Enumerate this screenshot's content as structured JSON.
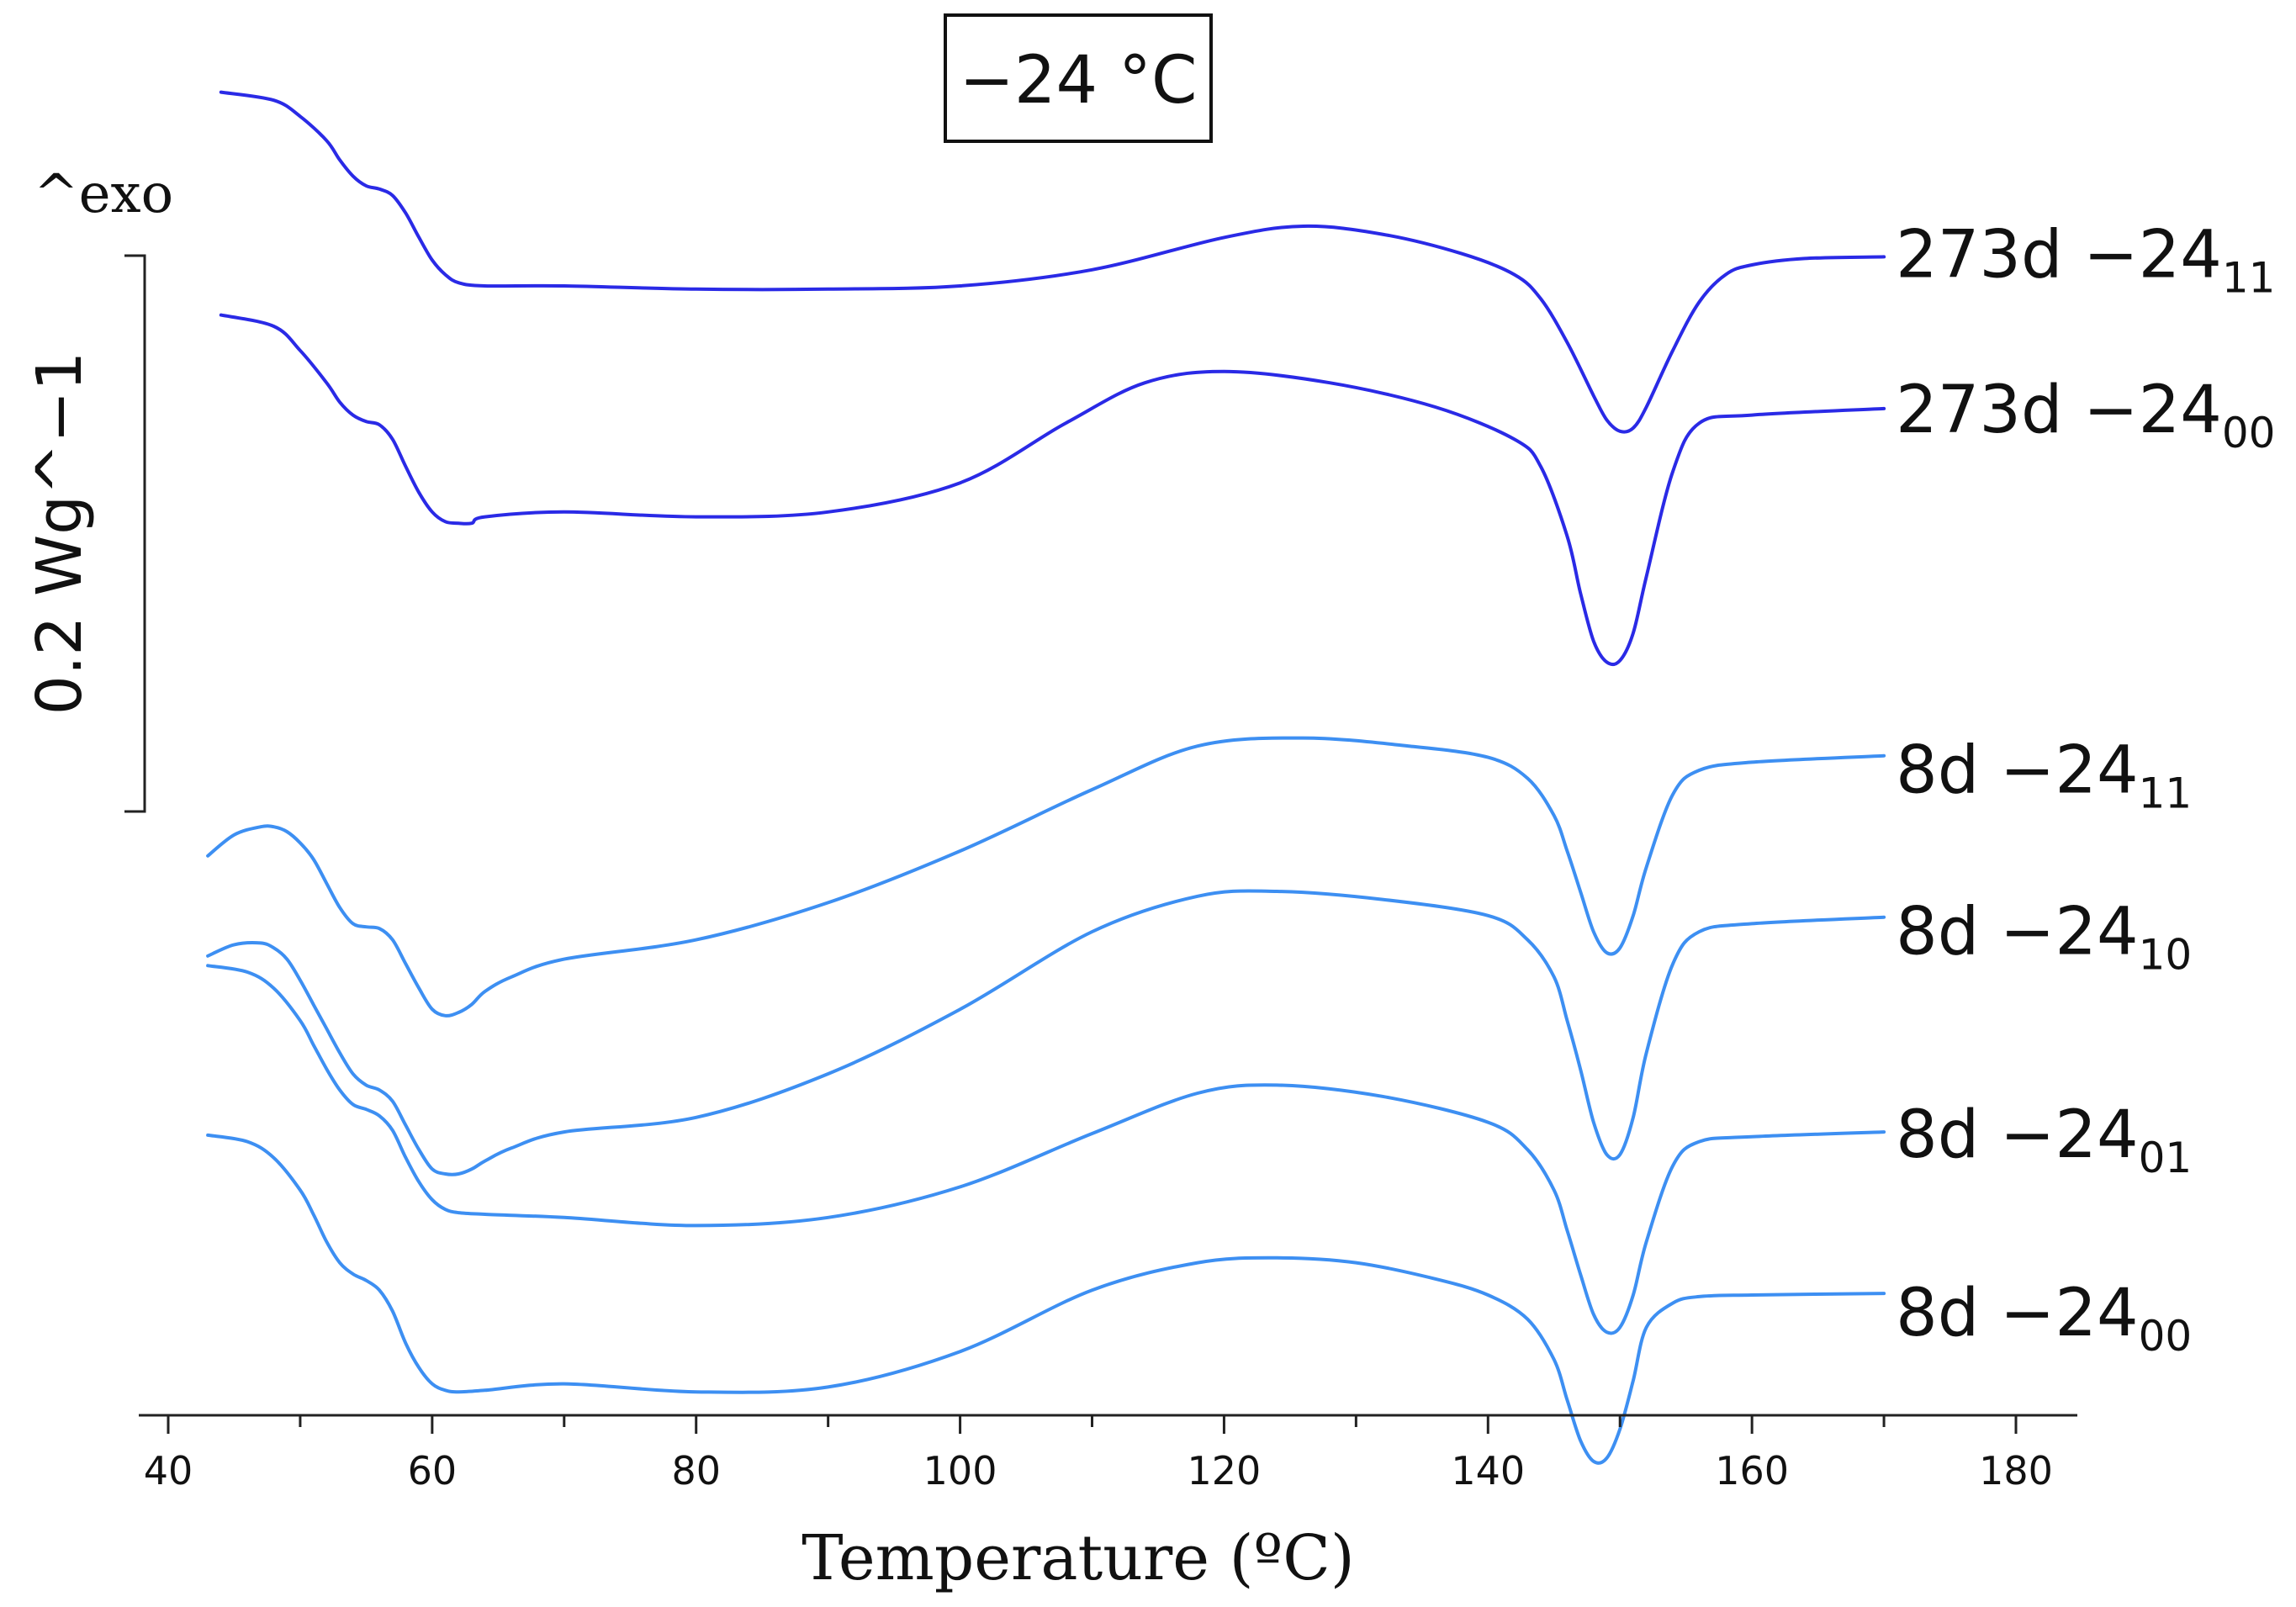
{
  "chart_data": {
    "type": "line",
    "title": "−24 °C",
    "xlabel": "Temperature (ºC)",
    "ylabel": "0.2 Wg^−1",
    "exo_label": "^exo",
    "xlim": [
      38.5,
      185
    ],
    "xticks": [
      40,
      60,
      80,
      100,
      120,
      140,
      160,
      180
    ],
    "colors": {
      "long_storage": "#2a2ae6",
      "short_storage": "#3d8ff2"
    },
    "series": [
      {
        "name": "273d −24",
        "name_main": "273d −24",
        "name_sub": "11",
        "color_key": "long_storage",
        "x": [
          44,
          48,
          50,
          52,
          53,
          54,
          55,
          56,
          57,
          58,
          59,
          60,
          61,
          62,
          64,
          70,
          80,
          90,
          100,
          110,
          120,
          126,
          132,
          138,
          142,
          144,
          146,
          148,
          149,
          150,
          151,
          152,
          154,
          156,
          158,
          160,
          164,
          170
        ],
        "y": [
          -0.03,
          -0.035,
          -0.045,
          -0.06,
          -0.072,
          -0.082,
          -0.088,
          -0.09,
          -0.094,
          -0.105,
          -0.12,
          -0.134,
          -0.143,
          -0.148,
          -0.15,
          -0.15,
          -0.152,
          -0.152,
          -0.15,
          -0.14,
          -0.12,
          -0.113,
          -0.118,
          -0.13,
          -0.143,
          -0.158,
          -0.185,
          -0.218,
          -0.233,
          -0.24,
          -0.238,
          -0.225,
          -0.19,
          -0.16,
          -0.143,
          -0.137,
          -0.133,
          -0.132
        ]
      },
      {
        "name": "273d −24",
        "name_main": "273d −24",
        "name_sub": "00",
        "color_key": "long_storage",
        "x": [
          44,
          48,
          50,
          52,
          53,
          54,
          55,
          56,
          57,
          58,
          59,
          60,
          61,
          62,
          63,
          64,
          70,
          80,
          90,
          100,
          108,
          114,
          120,
          128,
          136,
          142,
          144,
          146,
          147,
          148,
          149,
          150,
          151,
          152,
          154,
          156,
          160,
          170
        ],
        "y": [
          -0.168,
          -0.175,
          -0.19,
          -0.21,
          -0.222,
          -0.23,
          -0.234,
          -0.236,
          -0.245,
          -0.262,
          -0.278,
          -0.29,
          -0.296,
          -0.297,
          -0.297,
          -0.293,
          -0.29,
          -0.293,
          -0.29,
          -0.272,
          -0.235,
          -0.21,
          -0.203,
          -0.21,
          -0.225,
          -0.245,
          -0.262,
          -0.305,
          -0.34,
          -0.37,
          -0.383,
          -0.382,
          -0.365,
          -0.33,
          -0.265,
          -0.235,
          -0.23,
          -0.226
        ]
      },
      {
        "name": "8d −24",
        "name_main": "8d −24",
        "name_sub": "11",
        "color_key": "short_storage",
        "x": [
          43,
          45,
          47,
          48,
          49,
          50,
          51,
          52,
          53,
          54,
          55,
          56,
          57,
          58,
          59,
          60,
          61,
          62,
          63,
          64,
          66,
          70,
          80,
          90,
          100,
          110,
          118,
          126,
          134,
          140,
          143,
          145,
          146,
          147,
          148,
          149,
          150,
          151,
          152,
          154,
          156,
          160,
          170
        ],
        "y": [
          -0.503,
          -0.49,
          -0.485,
          -0.485,
          -0.488,
          -0.495,
          -0.505,
          -0.52,
          -0.535,
          -0.545,
          -0.547,
          -0.548,
          -0.555,
          -0.57,
          -0.585,
          -0.598,
          -0.602,
          -0.6,
          -0.595,
          -0.587,
          -0.578,
          -0.567,
          -0.555,
          -0.532,
          -0.5,
          -0.462,
          -0.435,
          -0.43,
          -0.435,
          -0.442,
          -0.455,
          -0.478,
          -0.5,
          -0.525,
          -0.55,
          -0.563,
          -0.56,
          -0.54,
          -0.51,
          -0.465,
          -0.45,
          -0.445,
          -0.441
        ]
      },
      {
        "name": "8d −24",
        "name_main": "8d −24",
        "name_sub": "10",
        "color_key": "short_storage",
        "x": [
          43,
          45,
          47,
          48,
          49,
          50,
          51,
          52,
          53,
          54,
          55,
          56,
          57,
          58,
          59,
          60,
          61,
          62,
          63,
          64,
          66,
          70,
          80,
          90,
          100,
          110,
          118,
          124,
          132,
          140,
          143,
          145,
          146,
          147,
          148,
          149,
          150,
          151,
          152,
          154,
          156,
          160,
          170
        ],
        "y": [
          -0.565,
          -0.558,
          -0.557,
          -0.56,
          -0.567,
          -0.58,
          -0.595,
          -0.61,
          -0.625,
          -0.638,
          -0.645,
          -0.648,
          -0.655,
          -0.67,
          -0.685,
          -0.697,
          -0.7,
          -0.7,
          -0.697,
          -0.692,
          -0.684,
          -0.674,
          -0.665,
          -0.638,
          -0.598,
          -0.55,
          -0.528,
          -0.525,
          -0.53,
          -0.54,
          -0.555,
          -0.578,
          -0.605,
          -0.635,
          -0.668,
          -0.688,
          -0.688,
          -0.665,
          -0.625,
          -0.57,
          -0.55,
          -0.545,
          -0.541
        ]
      },
      {
        "name": "8d −24",
        "name_main": "8d −24",
        "name_sub": "01",
        "color_key": "short_storage",
        "x": [
          43,
          46,
          48,
          50,
          51,
          52,
          53,
          54,
          55,
          56,
          57,
          58,
          59,
          60,
          61,
          62,
          64,
          70,
          80,
          90,
          100,
          110,
          118,
          124,
          132,
          140,
          143,
          145,
          146,
          147,
          148,
          149,
          150,
          151,
          152,
          154,
          156,
          160,
          170
        ],
        "y": [
          -0.571,
          -0.575,
          -0.585,
          -0.605,
          -0.62,
          -0.635,
          -0.648,
          -0.657,
          -0.66,
          -0.664,
          -0.673,
          -0.69,
          -0.705,
          -0.716,
          -0.722,
          -0.724,
          -0.725,
          -0.727,
          -0.732,
          -0.727,
          -0.708,
          -0.675,
          -0.65,
          -0.645,
          -0.652,
          -0.668,
          -0.685,
          -0.71,
          -0.735,
          -0.762,
          -0.787,
          -0.798,
          -0.795,
          -0.775,
          -0.742,
          -0.695,
          -0.68,
          -0.677,
          -0.674
        ]
      },
      {
        "name": "8d −24",
        "name_main": "8d −24",
        "name_sub": "00",
        "color_key": "short_storage",
        "x": [
          43,
          46,
          48,
          50,
          51,
          52,
          53,
          54,
          55,
          56,
          57,
          58,
          59,
          60,
          61,
          62,
          64,
          70,
          80,
          90,
          100,
          110,
          118,
          124,
          130,
          136,
          140,
          143,
          145,
          146,
          147,
          148,
          149,
          150,
          151,
          152,
          154,
          156,
          160,
          170
        ],
        "y": [
          -0.676,
          -0.68,
          -0.69,
          -0.71,
          -0.725,
          -0.742,
          -0.755,
          -0.762,
          -0.766,
          -0.772,
          -0.785,
          -0.805,
          -0.82,
          -0.83,
          -0.834,
          -0.835,
          -0.834,
          -0.83,
          -0.835,
          -0.832,
          -0.81,
          -0.772,
          -0.755,
          -0.752,
          -0.755,
          -0.765,
          -0.775,
          -0.79,
          -0.815,
          -0.84,
          -0.865,
          -0.878,
          -0.876,
          -0.858,
          -0.828,
          -0.795,
          -0.78,
          -0.776,
          -0.775,
          -0.774
        ]
      }
    ]
  }
}
